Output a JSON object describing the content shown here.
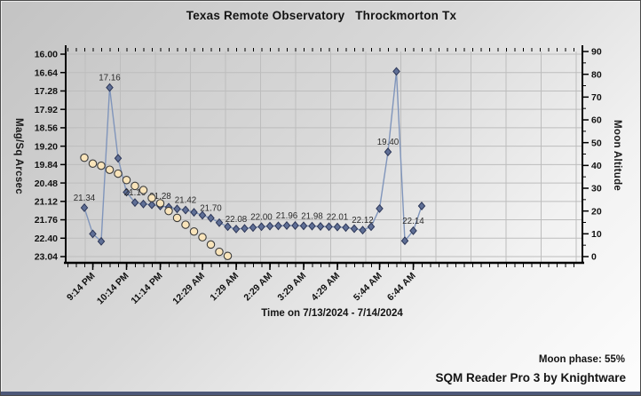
{
  "title": "Texas Remote Observatory   Throckmorton Tx",
  "footer": {
    "moon_phase": "Moon phase: 55%",
    "app_credit": "SQM Reader Pro 3 by Knightware"
  },
  "colors": {
    "sqm_line": "#8095bb",
    "sqm_marker_fill": "#5f6f96",
    "sqm_marker_stroke": "#2c3657",
    "moon_marker_fill": "#f9e4ba",
    "moon_marker_stroke": "#3c3c3c",
    "grid": "#bdbdbd",
    "axis": "#000000",
    "label_text": "#2b2b2b",
    "bottom_bar": "#4d5878"
  },
  "chart_data": {
    "type": "line",
    "title": "Texas Remote Observatory   Throckmorton Tx",
    "xlabel": "Time on 7/13/2024 - 7/14/2024",
    "ylabel_left": "Mag/Sq Arcsec",
    "ylabel_right": "Moon Altitude",
    "y_left_ticks": [
      "16.00",
      "16.64",
      "17.28",
      "17.92",
      "18.56",
      "19.20",
      "19.84",
      "20.48",
      "21.12",
      "21.76",
      "22.40",
      "23.04"
    ],
    "y_left_range": [
      16.0,
      23.04
    ],
    "y_left_inverted": true,
    "y_right_ticks": [
      "90",
      "80",
      "70",
      "60",
      "50",
      "40",
      "30",
      "20",
      "10",
      "0"
    ],
    "y_right_range": [
      0,
      90
    ],
    "grid": true,
    "x_ticks": [
      "9:14 PM",
      "10:14 PM",
      "11:14 PM",
      "12:29 AM",
      "1:29 AM",
      "2:29 AM",
      "3:29 AM",
      "4:29 AM",
      "5:44 AM",
      "6:44 AM"
    ],
    "x_tick_point_indices": [
      1,
      5,
      9,
      14,
      18,
      22,
      26,
      30,
      35,
      39
    ],
    "sample_interval_minutes": 15,
    "series": [
      {
        "name": "sqm",
        "axis": "left",
        "marker": "diamond",
        "values": [
          21.34,
          22.25,
          22.51,
          17.16,
          19.62,
          20.8,
          21.16,
          21.21,
          21.24,
          21.28,
          21.32,
          21.38,
          21.42,
          21.5,
          21.6,
          21.7,
          21.86,
          22.0,
          22.08,
          22.06,
          22.03,
          22.0,
          21.98,
          21.97,
          21.96,
          21.96,
          21.97,
          21.98,
          21.99,
          22.0,
          22.01,
          22.03,
          22.07,
          22.12,
          22.0,
          21.37,
          19.4,
          16.6,
          22.49,
          22.14,
          21.28
        ],
        "point_labels": {
          "0": "21.34",
          "3": "17.16",
          "6": "21.16",
          "9": "21.28",
          "12": "21.42",
          "15": "21.70",
          "18": "22.08",
          "21": "22.00",
          "24": "21.96",
          "27": "21.98",
          "30": "22.01",
          "33": "22.12",
          "36": "19.40",
          "39": "22.14"
        }
      },
      {
        "name": "moon_altitude",
        "axis": "right",
        "marker": "circle",
        "values": [
          43.4,
          40.8,
          39.9,
          38.1,
          36.4,
          33.6,
          31.0,
          29.2,
          25.7,
          23.4,
          20.0,
          17.0,
          14.0,
          11.0,
          8.5,
          5.3,
          2.1,
          0.3
        ],
        "point_labels": {}
      }
    ]
  }
}
